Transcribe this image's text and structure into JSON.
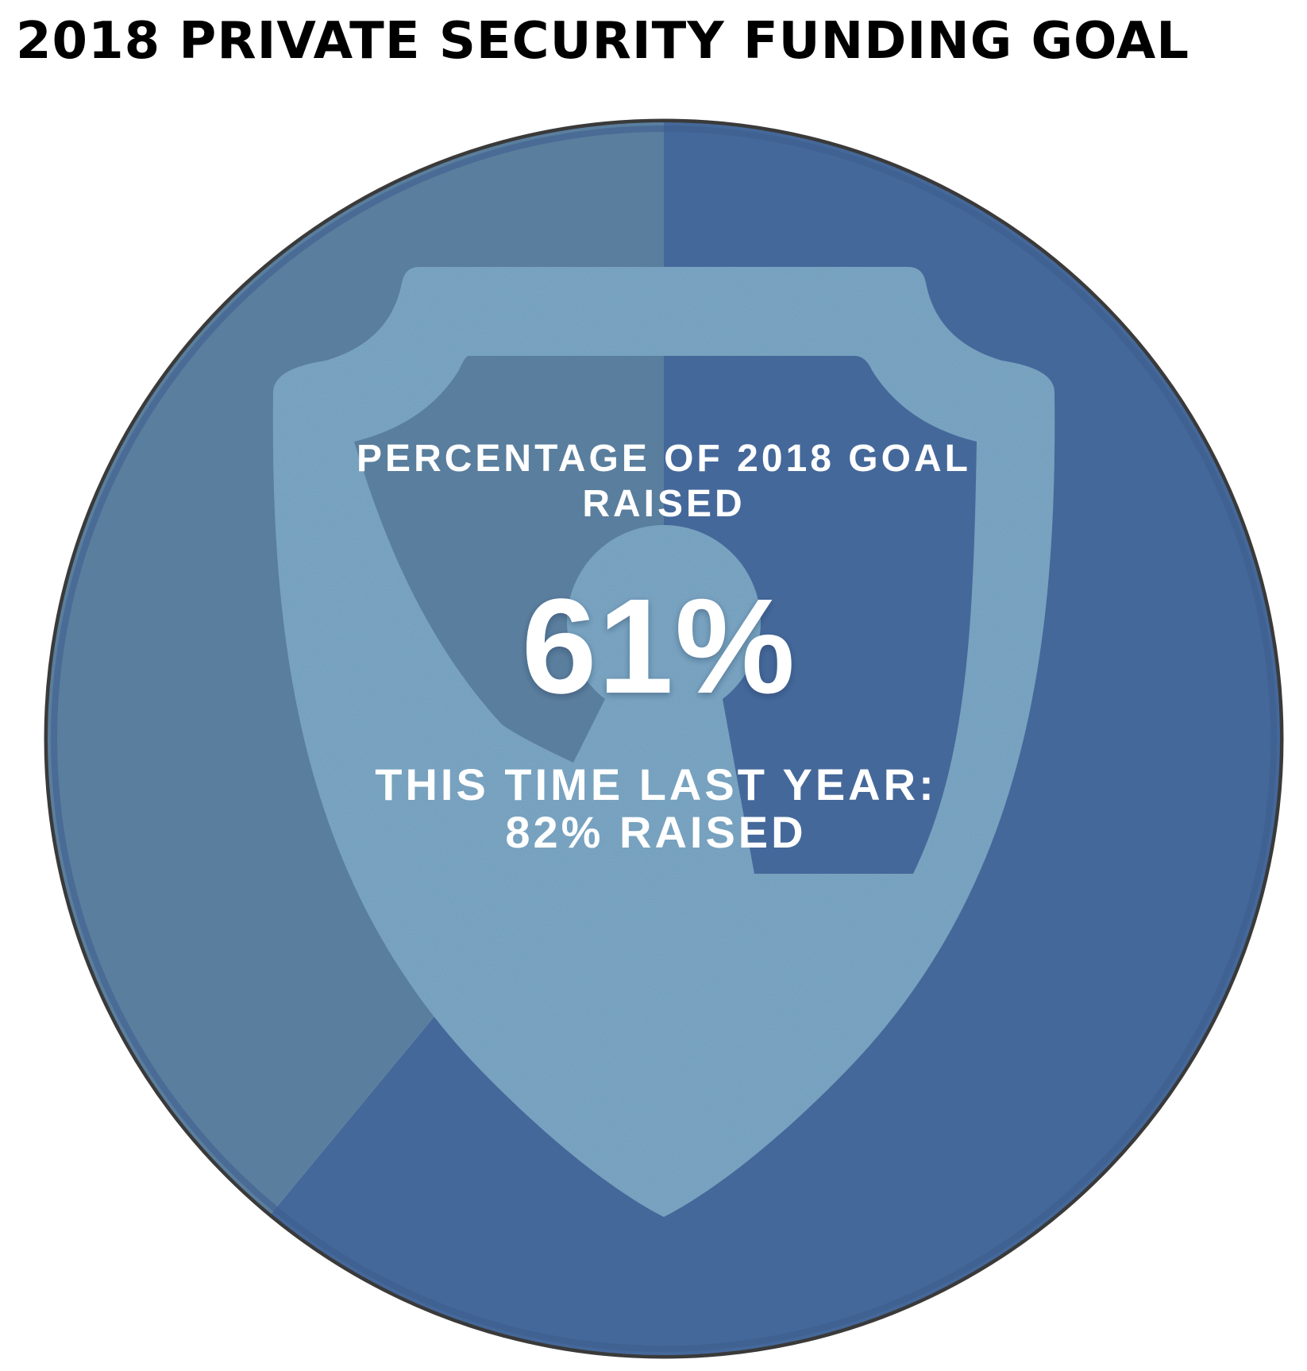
{
  "title": "2018 PRIVATE SECURITY FUNDING GOAL",
  "chart_data": {
    "type": "pie",
    "title": "2018 PRIVATE SECURITY FUNDING GOAL",
    "values": [
      61,
      39
    ],
    "label_line1": "PERCENTAGE OF 2018 GOAL",
    "label_line2": "RAISED",
    "value_label": "61%",
    "comparison_line1": "THIS TIME LAST YEAR:",
    "comparison_line2": "82% RAISED",
    "colors": {
      "raised": "#45689a",
      "remaining": "#5a7e9d",
      "shield": "#6a9bbb",
      "outline": "#3a3a3a"
    },
    "icon": "shield-keyhole-icon"
  }
}
